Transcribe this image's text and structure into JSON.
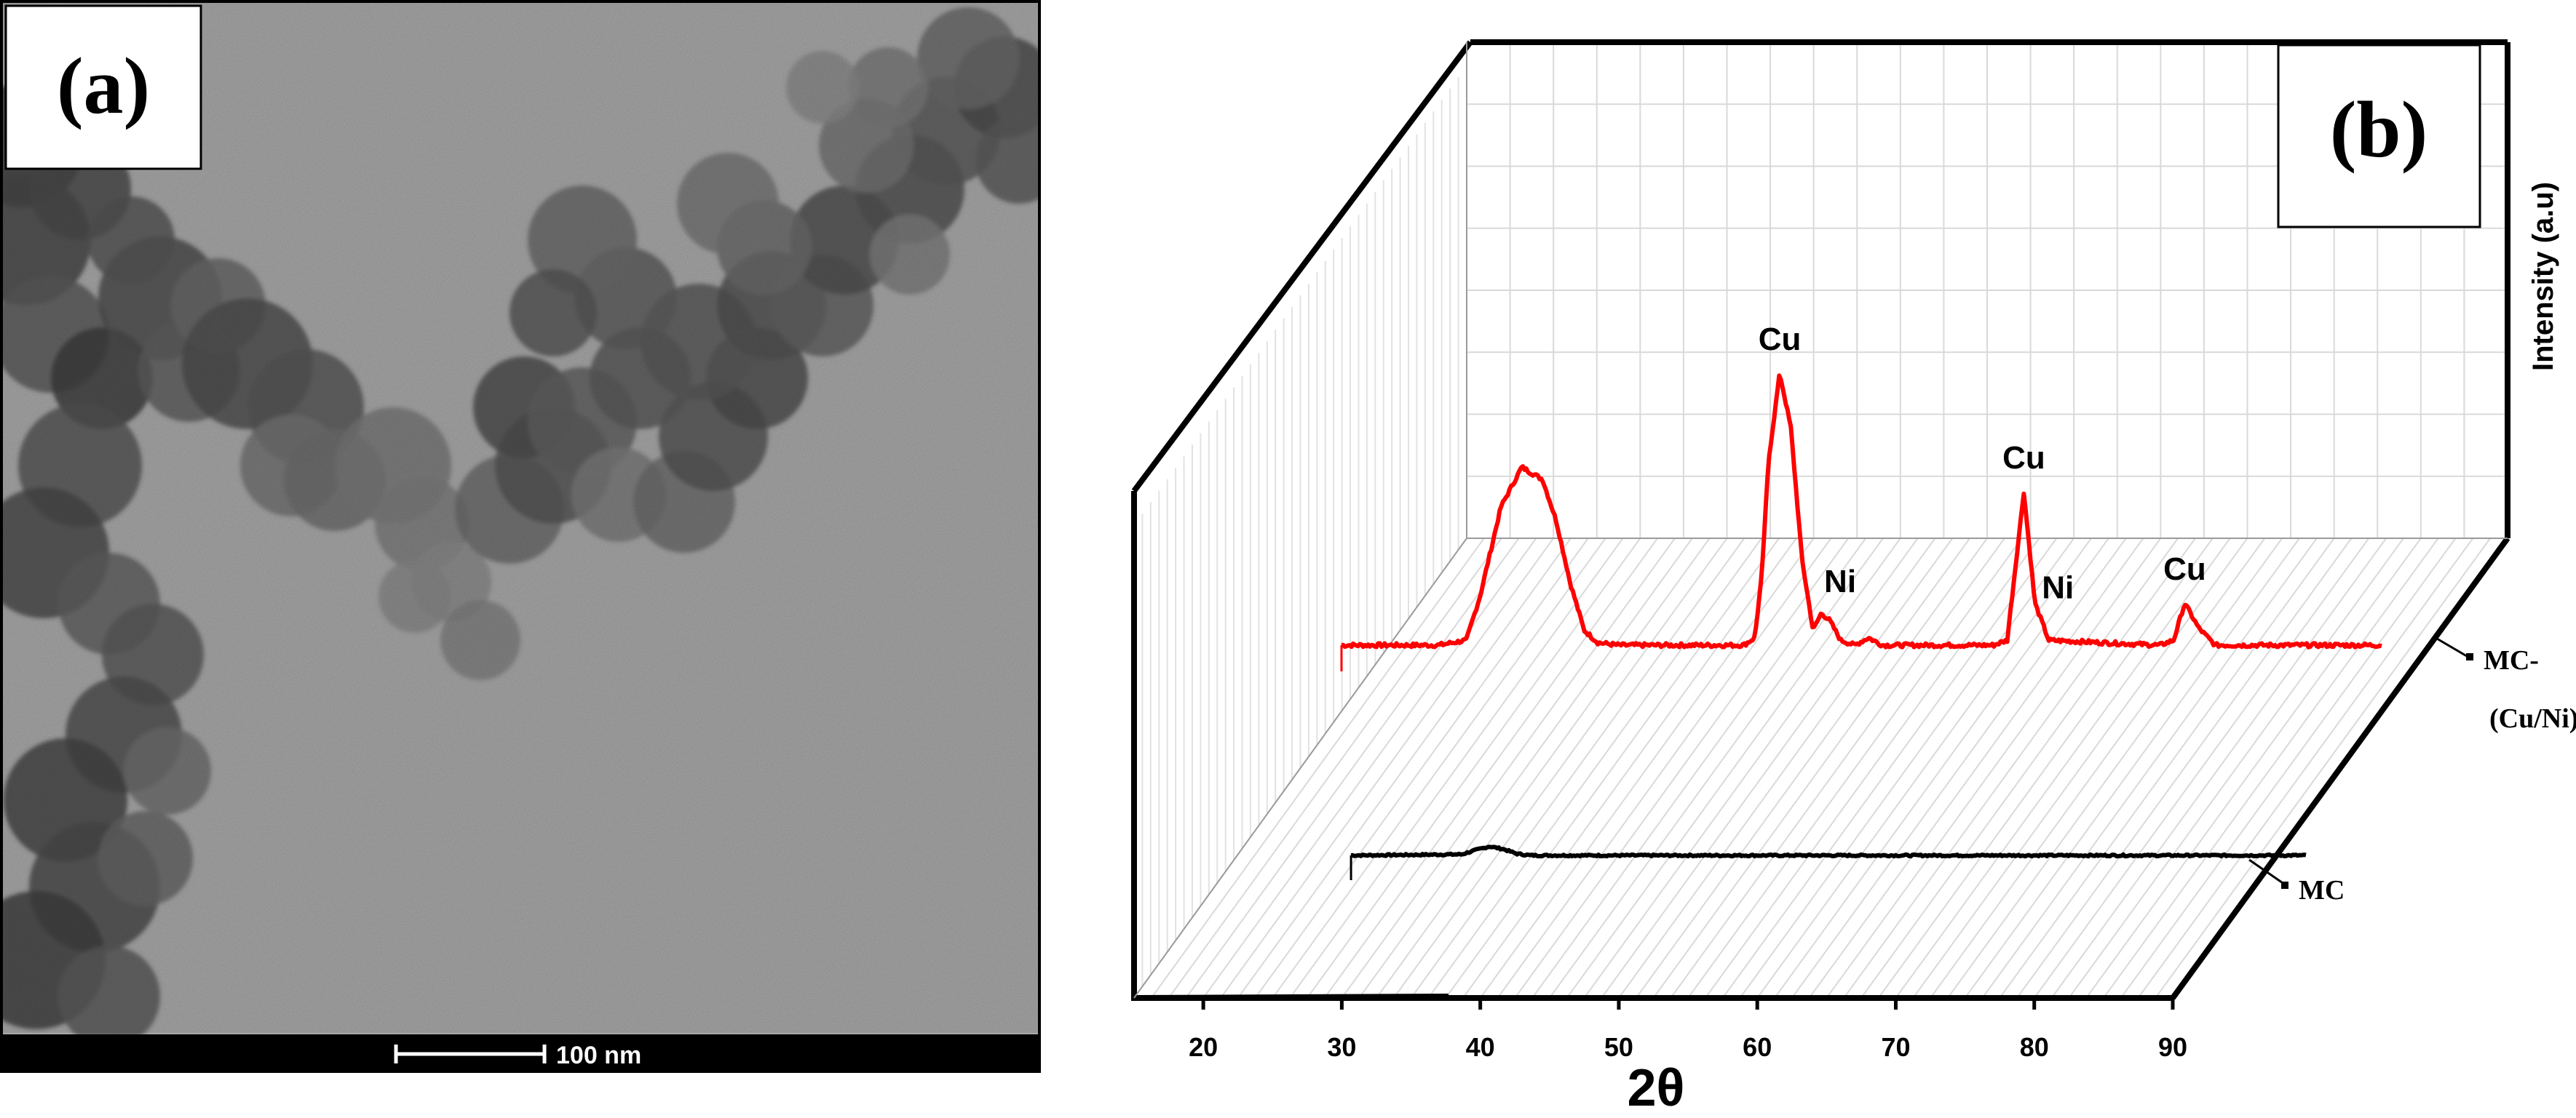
{
  "panel_a": {
    "label": "(a)",
    "scale_bar_text": "100 nm"
  },
  "panel_b": {
    "label": "(b)"
  },
  "chart_data": {
    "type": "line",
    "chart_style": "3D waterfall (stacked XRD patterns)",
    "xlabel": "2θ",
    "ylabel": "Intensity (a.u)",
    "xlim": [
      15,
      90
    ],
    "x_ticks": [
      20,
      30,
      40,
      50,
      60,
      70,
      80,
      90
    ],
    "grid": true,
    "series": [
      {
        "name": "MC",
        "color": "#000000",
        "x": [
          21,
          29,
          30,
          31,
          32,
          33,
          34,
          90
        ],
        "y": [
          0,
          1,
          5,
          8.5,
          6,
          1.5,
          0,
          0
        ]
      },
      {
        "name": "MC-(Cu/Ni)",
        "color": "#ff0000",
        "x": [
          15,
          22,
          24,
          25,
          26.5,
          28,
          29.5,
          30.5,
          31.5,
          32.5,
          33.5,
          35,
          44,
          44.8,
          45.3,
          45.8,
          46.6,
          47.4,
          48.2,
          49,
          49.6,
          50.2,
          51,
          52,
          53,
          54,
          62,
          63,
          64.2,
          65,
          66,
          74,
          75,
          75.8,
          76.8,
          78,
          90
        ],
        "y": [
          0,
          0,
          2,
          20,
          56,
          72,
          67,
          50,
          25,
          6,
          1,
          0,
          0,
          3,
          28,
          75,
          110,
          88,
          35,
          6,
          13,
          10,
          2,
          0,
          3,
          0,
          0,
          2,
          62,
          17,
          2,
          0,
          2,
          17,
          7,
          0,
          0
        ]
      }
    ],
    "annotations": [
      {
        "text": "Cu",
        "x": 46.6
      },
      {
        "text": "Ni",
        "x": 49.8
      },
      {
        "text": "Cu",
        "x": 64.2
      },
      {
        "text": "Ni",
        "x": 65.5
      },
      {
        "text": "Cu",
        "x": 75.8
      }
    ]
  }
}
